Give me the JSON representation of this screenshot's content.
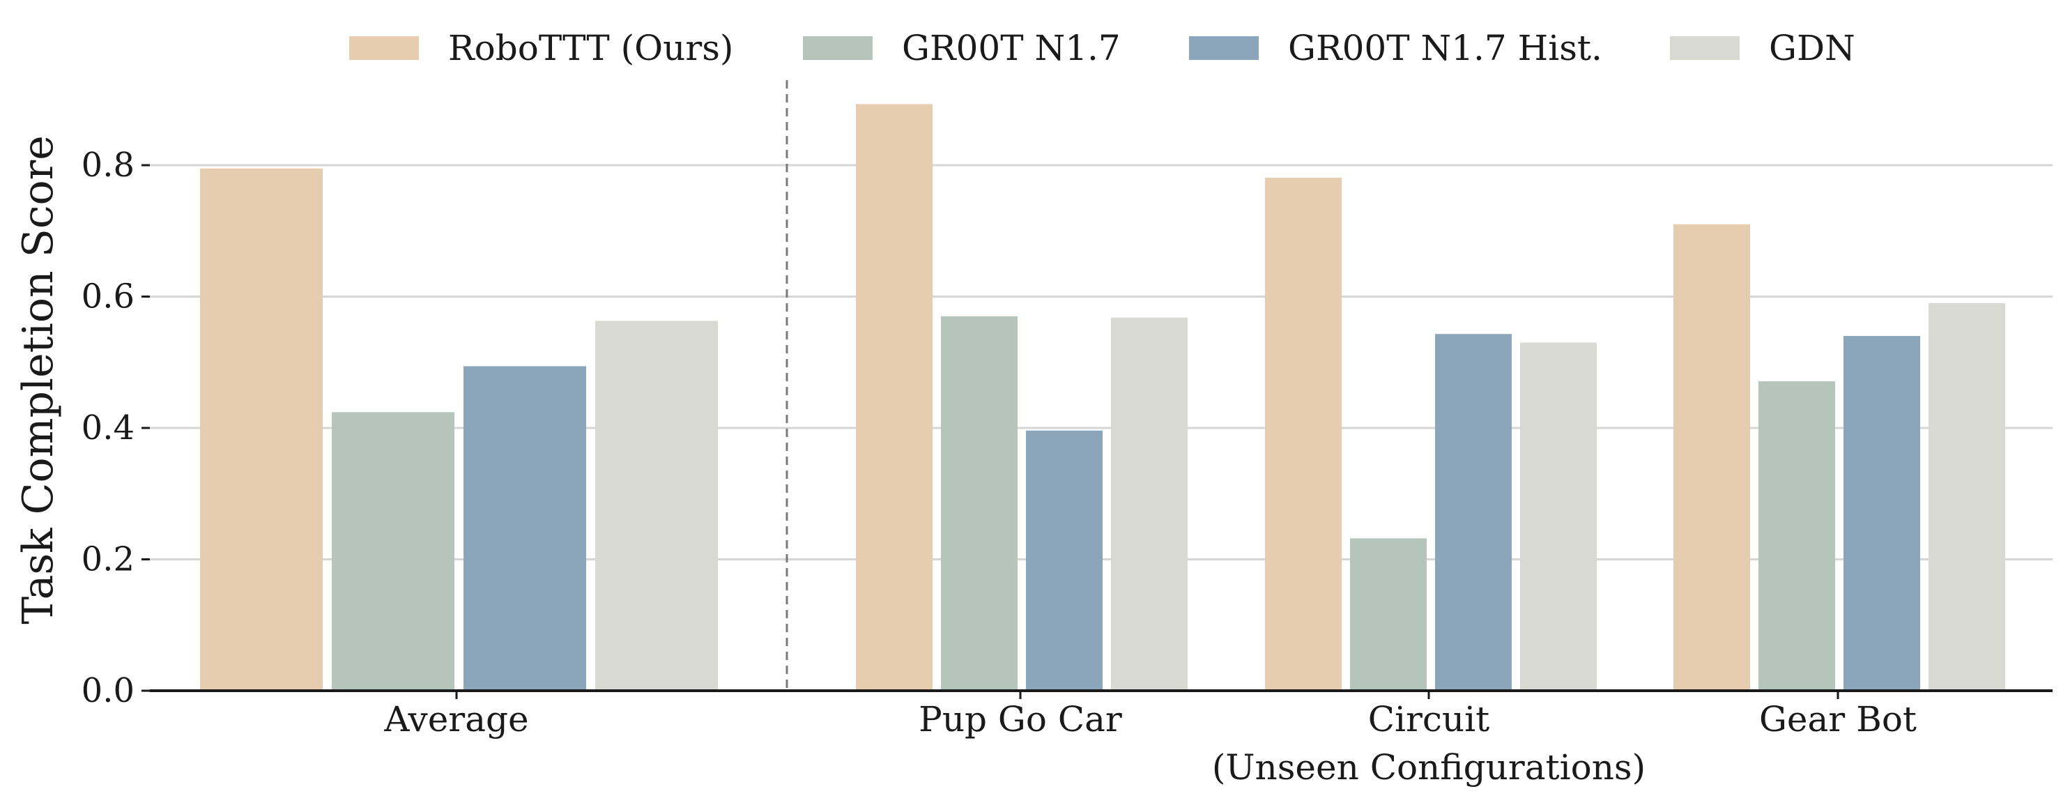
{
  "chart_data": {
    "type": "bar",
    "ylabel": "Task Completion Score",
    "xlabel": "",
    "ylim": [
      0,
      0.93
    ],
    "yticks": [
      0.0,
      0.2,
      0.4,
      0.6,
      0.8
    ],
    "ytick_labels": [
      "0.0",
      "0.2",
      "0.4",
      "0.6",
      "0.8"
    ],
    "grid": "horizontal",
    "legend_position": "top",
    "groups": [
      {
        "label": "Average",
        "values": [
          0.795,
          0.424,
          0.494,
          0.563
        ]
      },
      {
        "label": "Pup Go Car",
        "values": [
          0.893,
          0.57,
          0.396,
          0.568
        ]
      },
      {
        "label": "Circuit",
        "values": [
          0.781,
          0.232,
          0.543,
          0.53
        ]
      },
      {
        "label": "Gear Bot",
        "values": [
          0.71,
          0.471,
          0.54,
          0.59
        ]
      }
    ],
    "series": [
      {
        "name": "RoboTTT (Ours)",
        "color": "#e6cdaf"
      },
      {
        "name": "GR00T N1.7",
        "color": "#b5c5bb"
      },
      {
        "name": "GR00T N1.7 Hist.",
        "color": "#8ba6bb"
      },
      {
        "name": "GDN",
        "color": "#d9d9d4"
      }
    ],
    "annotation": "(Unseen Configurations)",
    "separator": "dashed line between Average and per-task groups"
  }
}
